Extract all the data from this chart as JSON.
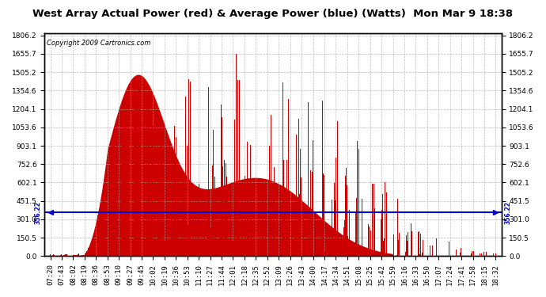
{
  "title": "West Array Actual Power (red) & Average Power (blue) (Watts)  Mon Mar 9 18:38",
  "copyright": "Copyright 2009 Cartronics.com",
  "avg_power": 356.22,
  "y_max": 1806.2,
  "y_ticks": [
    0.0,
    150.5,
    301.0,
    451.5,
    602.1,
    752.6,
    903.1,
    1053.6,
    1204.1,
    1354.6,
    1505.2,
    1655.7,
    1806.2
  ],
  "x_labels": [
    "07:20",
    "07:43",
    "08:02",
    "08:19",
    "08:36",
    "08:53",
    "09:10",
    "09:27",
    "09:45",
    "10:02",
    "10:19",
    "10:36",
    "10:53",
    "11:10",
    "11:27",
    "11:44",
    "12:01",
    "12:18",
    "12:35",
    "12:52",
    "13:09",
    "13:26",
    "13:43",
    "14:00",
    "14:17",
    "14:34",
    "14:51",
    "15:08",
    "15:25",
    "15:42",
    "15:59",
    "16:16",
    "16:33",
    "16:50",
    "17:07",
    "17:24",
    "17:41",
    "17:58",
    "18:15",
    "18:32"
  ],
  "bg_color": "#ffffff",
  "plot_bg_color": "#ffffff",
  "grid_color": "#aaaaaa",
  "bar_color": "#cc0000",
  "avg_line_color": "#0000cc",
  "title_color": "#000000",
  "border_color": "#000000",
  "title_fontsize": 9.5,
  "copyright_fontsize": 6,
  "tick_fontsize": 6.5
}
